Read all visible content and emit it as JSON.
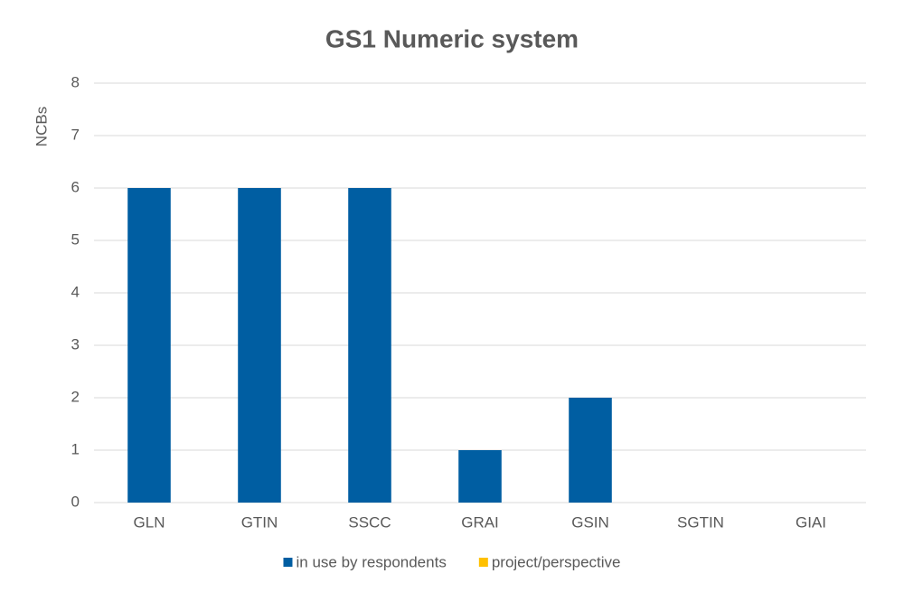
{
  "chart_data": {
    "type": "bar",
    "stacked": true,
    "title": "GS1 Numeric system",
    "y_label": "NCBs",
    "categories": [
      "GLN",
      "GTIN",
      "SSCC",
      "GRAI",
      "GSIN",
      "SGTIN",
      "GIAI"
    ],
    "series": [
      {
        "name": "in use by respondents",
        "color": "#005ea2",
        "values": [
          6,
          6,
          6,
          1,
          2,
          0,
          0
        ]
      },
      {
        "name": "project/perspective",
        "color": "#ffc000",
        "values": [
          0,
          0,
          0,
          0,
          0,
          0,
          0
        ]
      }
    ],
    "ylim": [
      0,
      8
    ],
    "yticks": [
      0,
      1,
      2,
      3,
      4,
      5,
      6,
      7,
      8
    ],
    "grid": true,
    "legend": "bottom"
  }
}
